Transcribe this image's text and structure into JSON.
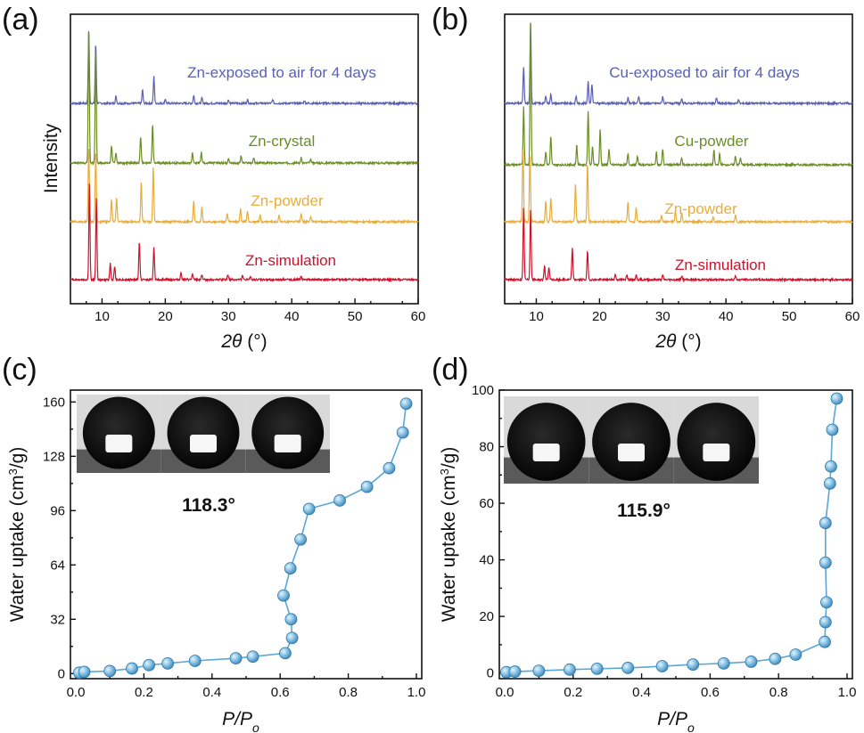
{
  "panel_labels": [
    "(a)",
    "(b)",
    "(c)",
    "(d)"
  ],
  "chart_data": [
    {
      "type": "line",
      "panel": "(a)",
      "xlabel_math": "2θ",
      "xlabel_unit": "(°)",
      "ylabel": "Intensity",
      "xlim": [
        5,
        60
      ],
      "xticks": [
        10,
        20,
        30,
        40,
        50,
        60
      ],
      "series": [
        {
          "name": "Zn-exposed to air for 4 days",
          "color": "#5b5fb0",
          "peaks": [
            [
              7.9,
              80
            ],
            [
              9.0,
              67
            ],
            [
              12.2,
              8
            ],
            [
              16.4,
              15
            ],
            [
              18.2,
              30
            ],
            [
              20.0,
              5
            ],
            [
              24.5,
              9
            ],
            [
              25.8,
              6
            ],
            [
              30.0,
              4
            ],
            [
              33.0,
              4
            ],
            [
              37.0,
              4
            ],
            [
              42.0,
              3
            ]
          ]
        },
        {
          "name": "Zn-crystal",
          "color": "#6b8e23",
          "peaks": [
            [
              7.9,
              155
            ],
            [
              9.0,
              130
            ],
            [
              11.5,
              20
            ],
            [
              12.2,
              12
            ],
            [
              16.1,
              30
            ],
            [
              18.0,
              43
            ],
            [
              24.3,
              12
            ],
            [
              25.7,
              12
            ],
            [
              30.0,
              6
            ],
            [
              32.0,
              8
            ],
            [
              34.0,
              6
            ],
            [
              41.5,
              6
            ],
            [
              43.0,
              4
            ]
          ]
        },
        {
          "name": "Zn-powder",
          "color": "#e8ad3a",
          "peaks": [
            [
              7.9,
              85
            ],
            [
              9.0,
              80
            ],
            [
              11.5,
              25
            ],
            [
              12.3,
              28
            ],
            [
              16.2,
              45
            ],
            [
              18.1,
              62
            ],
            [
              24.5,
              24
            ],
            [
              25.8,
              16
            ],
            [
              29.8,
              9
            ],
            [
              31.9,
              14
            ],
            [
              33.0,
              12
            ],
            [
              35.0,
              8
            ],
            [
              38.0,
              8
            ],
            [
              41.5,
              10
            ],
            [
              43.0,
              6
            ]
          ]
        },
        {
          "name": "Zn-simulation",
          "color": "#d0112b",
          "peaks": [
            [
              8.0,
              108
            ],
            [
              9.1,
              92
            ],
            [
              11.3,
              18
            ],
            [
              12.0,
              15
            ],
            [
              15.9,
              43
            ],
            [
              18.2,
              37
            ],
            [
              22.5,
              8
            ],
            [
              24.3,
              6
            ],
            [
              25.8,
              6
            ],
            [
              29.9,
              6
            ],
            [
              32.2,
              4
            ],
            [
              33.5,
              4
            ],
            [
              41.5,
              4
            ]
          ]
        }
      ]
    },
    {
      "type": "line",
      "panel": "(b)",
      "xlabel_math": "2θ",
      "xlabel_unit": "(°)",
      "ylabel": "",
      "xlim": [
        5,
        60
      ],
      "xticks": [
        10,
        20,
        30,
        40,
        50,
        60
      ],
      "series": [
        {
          "name": "Cu-exposed to air for 4 days",
          "color": "#5b5fb0",
          "peaks": [
            [
              8.0,
              40
            ],
            [
              9.1,
              90
            ],
            [
              11.5,
              8
            ],
            [
              12.3,
              10
            ],
            [
              16.3,
              8
            ],
            [
              18.2,
              25
            ],
            [
              18.8,
              22
            ],
            [
              24.5,
              6
            ],
            [
              26.2,
              8
            ],
            [
              30.0,
              8
            ],
            [
              33.0,
              4
            ],
            [
              38.5,
              6
            ],
            [
              42.0,
              4
            ]
          ]
        },
        {
          "name": "Cu-powder",
          "color": "#6b8e23",
          "peaks": [
            [
              8.0,
              65
            ],
            [
              9.1,
              160
            ],
            [
              11.5,
              15
            ],
            [
              12.3,
              32
            ],
            [
              16.4,
              22
            ],
            [
              18.2,
              60
            ],
            [
              18.9,
              20
            ],
            [
              20.1,
              40
            ],
            [
              21.5,
              18
            ],
            [
              24.5,
              12
            ],
            [
              26.0,
              10
            ],
            [
              29.0,
              14
            ],
            [
              30.0,
              18
            ],
            [
              33.0,
              8
            ],
            [
              38.1,
              16
            ],
            [
              39.0,
              12
            ],
            [
              41.5,
              10
            ],
            [
              42.3,
              8
            ]
          ]
        },
        {
          "name": "Zn-powder",
          "color": "#e8ad3a",
          "peaks": [
            [
              7.9,
              85
            ],
            [
              9.0,
              78
            ],
            [
              11.5,
              23
            ],
            [
              12.3,
              27
            ],
            [
              16.2,
              42
            ],
            [
              18.1,
              66
            ],
            [
              24.5,
              23
            ],
            [
              25.8,
              16
            ],
            [
              29.8,
              8
            ],
            [
              32.0,
              12
            ],
            [
              33.0,
              10
            ],
            [
              38.0,
              6
            ],
            [
              41.5,
              8
            ]
          ]
        },
        {
          "name": "Zn-simulation",
          "color": "#d0112b",
          "peaks": [
            [
              8.0,
              80
            ],
            [
              9.1,
              78
            ],
            [
              11.3,
              16
            ],
            [
              12.0,
              14
            ],
            [
              15.7,
              35
            ],
            [
              18.1,
              32
            ],
            [
              22.5,
              6
            ],
            [
              24.3,
              6
            ],
            [
              25.8,
              5
            ],
            [
              30.0,
              5
            ],
            [
              33.0,
              4
            ],
            [
              41.5,
              4
            ]
          ]
        }
      ]
    },
    {
      "type": "scatter",
      "panel": "(c)",
      "xlabel_math": "P/P",
      "xlabel_sub": "o",
      "ylabel_main": "Water uptake (cm",
      "ylabel_sup": "3",
      "ylabel_end": "/g)",
      "xlim": [
        0,
        1.0
      ],
      "ylim": [
        -3,
        167
      ],
      "xticks": [
        0.0,
        0.2,
        0.4,
        0.6,
        0.8,
        1.0
      ],
      "xtick_labels": [
        "0.0",
        "0.2",
        "0.4",
        "0.6",
        "0.8",
        "1.0"
      ],
      "yticks": [
        0,
        32,
        64,
        96,
        128,
        160
      ],
      "color": "#59a7d6",
      "contact_angle": "118.3°",
      "points": [
        [
          0.01,
          0.5
        ],
        [
          0.025,
          1
        ],
        [
          0.1,
          1.5
        ],
        [
          0.165,
          3
        ],
        [
          0.215,
          5
        ],
        [
          0.27,
          6
        ],
        [
          0.35,
          7.5
        ],
        [
          0.47,
          9
        ],
        [
          0.52,
          10
        ],
        [
          0.615,
          12
        ],
        [
          0.635,
          21
        ],
        [
          0.632,
          32
        ],
        [
          0.61,
          46
        ],
        [
          0.63,
          62
        ],
        [
          0.66,
          79
        ],
        [
          0.685,
          97
        ],
        [
          0.775,
          102
        ],
        [
          0.855,
          110
        ],
        [
          0.92,
          121
        ],
        [
          0.96,
          142
        ],
        [
          0.97,
          159
        ]
      ]
    },
    {
      "type": "scatter",
      "panel": "(d)",
      "xlabel_math": "P/P",
      "xlabel_sub": "o",
      "ylabel_main": "Water uptake (cm",
      "ylabel_sup": "3",
      "ylabel_end": "/g)",
      "xlim": [
        0,
        1.0
      ],
      "ylim": [
        -2,
        100
      ],
      "xticks": [
        0.0,
        0.2,
        0.4,
        0.6,
        0.8,
        1.0
      ],
      "xtick_labels": [
        "0.0",
        "0.2",
        "0.4",
        "0.6",
        "0.8",
        "1.0"
      ],
      "yticks": [
        0,
        20,
        40,
        60,
        80,
        100
      ],
      "color": "#59a7d6",
      "contact_angle": "115.9°",
      "points": [
        [
          0.005,
          0.3
        ],
        [
          0.03,
          0.5
        ],
        [
          0.1,
          0.8
        ],
        [
          0.19,
          1.2
        ],
        [
          0.27,
          1.5
        ],
        [
          0.36,
          1.8
        ],
        [
          0.46,
          2.4
        ],
        [
          0.55,
          3
        ],
        [
          0.64,
          3.4
        ],
        [
          0.72,
          4
        ],
        [
          0.79,
          5
        ],
        [
          0.85,
          6.5
        ],
        [
          0.935,
          11
        ],
        [
          0.937,
          18
        ],
        [
          0.94,
          25
        ],
        [
          0.937,
          39
        ],
        [
          0.937,
          53
        ],
        [
          0.95,
          67
        ],
        [
          0.953,
          73
        ],
        [
          0.957,
          86
        ],
        [
          0.97,
          97
        ]
      ]
    }
  ]
}
